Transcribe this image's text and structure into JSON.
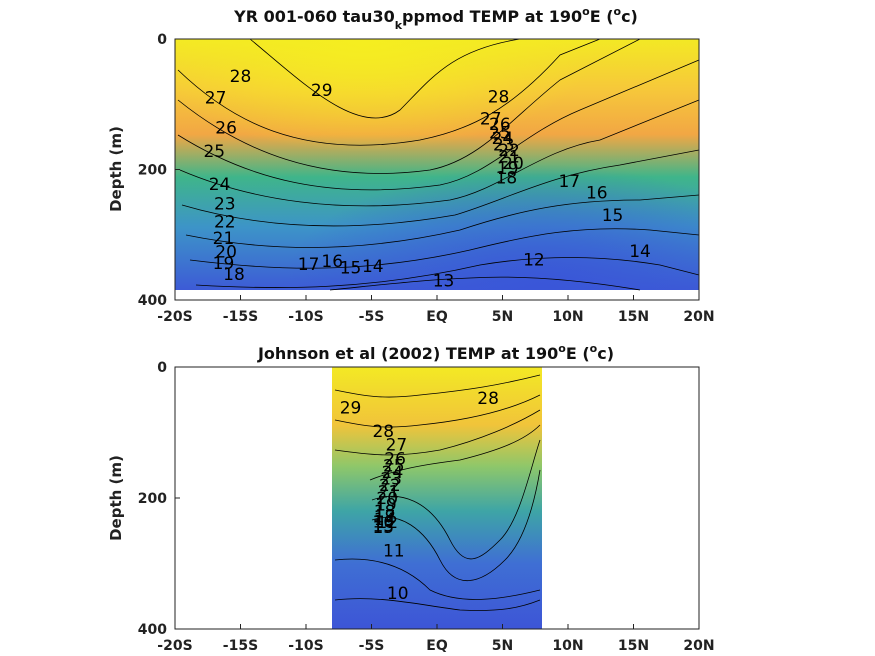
{
  "chart_data": [
    {
      "type": "heatmap",
      "title_main": "YR 001-060 tau30",
      "title_sub": "k",
      "title_rest": "ppmod TEMP at 190",
      "title_sup": "o",
      "title_e": "E (",
      "title_unitsup": "o",
      "title_end": "c)",
      "ylabel": "Depth (m)",
      "x_ticks": [
        "-20S",
        "-15S",
        "-10S",
        "-5S",
        "EQ",
        "5N",
        "10N",
        "15N",
        "20N"
      ],
      "y_ticks": [
        "0",
        "200",
        "400"
      ],
      "xlim": [
        -20,
        20
      ],
      "ylim": [
        0,
        400
      ],
      "data_extent": {
        "lat": [
          -20,
          20
        ],
        "depth": [
          0,
          385
        ]
      },
      "colors": {
        "warm": "#f4ea22",
        "mid": "#3fb58a",
        "cold": "#3d5bd6"
      },
      "contour_labels": [
        {
          "text": "28",
          "lat": -15.0,
          "depth": 57
        },
        {
          "text": "29",
          "lat": -8.8,
          "depth": 78
        },
        {
          "text": "27",
          "lat": -16.9,
          "depth": 90
        },
        {
          "text": "26",
          "lat": -16.1,
          "depth": 136
        },
        {
          "text": "25",
          "lat": -17.0,
          "depth": 172
        },
        {
          "text": "24",
          "lat": -16.6,
          "depth": 222
        },
        {
          "text": "23",
          "lat": -16.2,
          "depth": 252
        },
        {
          "text": "22",
          "lat": -16.2,
          "depth": 280
        },
        {
          "text": "21",
          "lat": -16.3,
          "depth": 305
        },
        {
          "text": "20",
          "lat": -16.1,
          "depth": 326
        },
        {
          "text": "19",
          "lat": -16.3,
          "depth": 343
        },
        {
          "text": "18",
          "lat": -15.5,
          "depth": 360
        },
        {
          "text": "17",
          "lat": -9.8,
          "depth": 345
        },
        {
          "text": "16",
          "lat": -8.0,
          "depth": 340
        },
        {
          "text": "15",
          "lat": -6.6,
          "depth": 350
        },
        {
          "text": "14",
          "lat": -4.9,
          "depth": 348
        },
        {
          "text": "13",
          "lat": 0.5,
          "depth": 370
        },
        {
          "text": "12",
          "lat": 7.4,
          "depth": 338
        },
        {
          "text": "28",
          "lat": 4.7,
          "depth": 88
        },
        {
          "text": "27",
          "lat": 4.1,
          "depth": 122
        },
        {
          "text": "26",
          "lat": 4.8,
          "depth": 130
        },
        {
          "text": "25",
          "lat": 4.8,
          "depth": 143
        },
        {
          "text": "24",
          "lat": 5.0,
          "depth": 152
        },
        {
          "text": "23",
          "lat": 5.1,
          "depth": 162
        },
        {
          "text": "22",
          "lat": 5.5,
          "depth": 170
        },
        {
          "text": "21",
          "lat": 5.5,
          "depth": 180
        },
        {
          "text": "20",
          "lat": 5.8,
          "depth": 190
        },
        {
          "text": "19",
          "lat": 5.4,
          "depth": 198
        },
        {
          "text": "18",
          "lat": 5.3,
          "depth": 212
        },
        {
          "text": "17",
          "lat": 10.1,
          "depth": 218
        },
        {
          "text": "16",
          "lat": 12.2,
          "depth": 235
        },
        {
          "text": "15",
          "lat": 13.4,
          "depth": 270
        },
        {
          "text": "14",
          "lat": 15.5,
          "depth": 325
        }
      ]
    },
    {
      "type": "heatmap",
      "title_main": "Johnson et al (2002) TEMP at 190",
      "title_sup": "o",
      "title_e": "E (",
      "title_unitsup": "o",
      "title_end": "c)",
      "ylabel": "Depth (m)",
      "x_ticks": [
        "-20S",
        "-15S",
        "-10S",
        "-5S",
        "EQ",
        "5N",
        "10N",
        "15N",
        "20N"
      ],
      "y_ticks": [
        "0",
        "200",
        "400"
      ],
      "xlim": [
        -20,
        20
      ],
      "ylim": [
        0,
        400
      ],
      "data_extent": {
        "lat": [
          -8,
          8
        ],
        "depth": [
          0,
          400
        ]
      },
      "colors": {
        "warm": "#f4ea22",
        "mid": "#3fb58a",
        "cold": "#3d5bd6"
      },
      "contour_labels": [
        {
          "text": "29",
          "lat": -6.6,
          "depth": 62
        },
        {
          "text": "28",
          "lat": -4.1,
          "depth": 98
        },
        {
          "text": "28",
          "lat": 3.9,
          "depth": 47
        },
        {
          "text": "27",
          "lat": -3.1,
          "depth": 118
        },
        {
          "text": "26",
          "lat": -3.2,
          "depth": 140
        },
        {
          "text": "25",
          "lat": -3.3,
          "depth": 150
        },
        {
          "text": "24",
          "lat": -3.4,
          "depth": 160
        },
        {
          "text": "23",
          "lat": -3.5,
          "depth": 170
        },
        {
          "text": "22",
          "lat": -3.6,
          "depth": 180
        },
        {
          "text": "21",
          "lat": -3.7,
          "depth": 190
        },
        {
          "text": "20",
          "lat": -3.8,
          "depth": 200
        },
        {
          "text": "19",
          "lat": -3.9,
          "depth": 210
        },
        {
          "text": "18",
          "lat": -4.0,
          "depth": 220
        },
        {
          "text": "17",
          "lat": -4.0,
          "depth": 228
        },
        {
          "text": "16",
          "lat": -4.1,
          "depth": 236
        },
        {
          "text": "15",
          "lat": -4.1,
          "depth": 244
        },
        {
          "text": "14",
          "lat": -4.0,
          "depth": 232
        },
        {
          "text": "13",
          "lat": -4.1,
          "depth": 242
        },
        {
          "text": "12",
          "lat": -3.8,
          "depth": 237
        },
        {
          "text": "11",
          "lat": -3.3,
          "depth": 280
        },
        {
          "text": "10",
          "lat": -3.0,
          "depth": 345
        }
      ]
    }
  ]
}
